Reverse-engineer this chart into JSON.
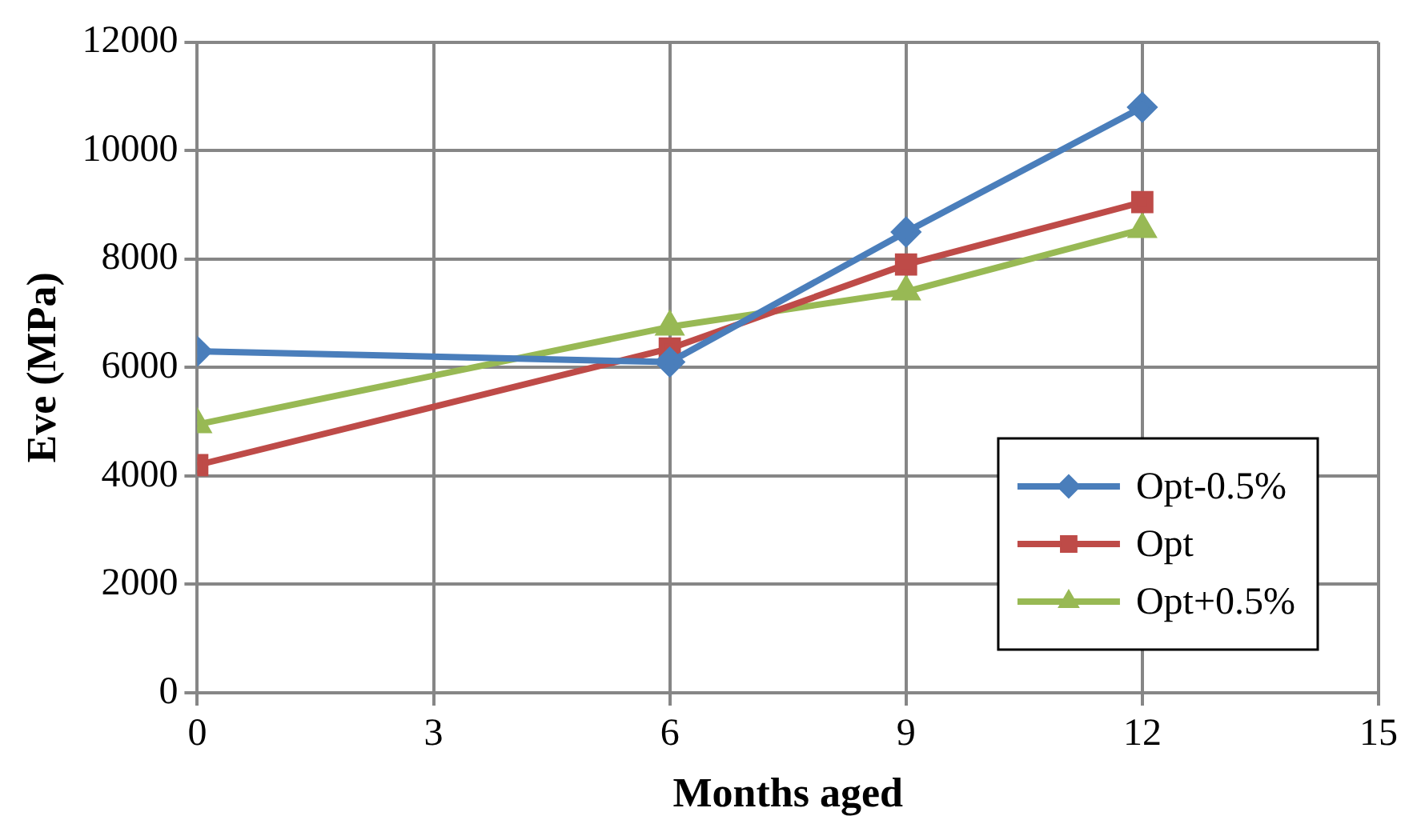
{
  "chart_data": {
    "type": "line",
    "xlabel": "Months aged",
    "ylabel": "Eve (MPa)",
    "x": [
      0,
      6,
      9,
      12
    ],
    "series": [
      {
        "name": "Opt-0.5%",
        "color": "#4a7ebb",
        "values": [
          6300,
          6100,
          8500,
          10800
        ],
        "marker": "diamond"
      },
      {
        "name": "Opt",
        "color": "#be4b48",
        "values": [
          4200,
          6350,
          7900,
          9050
        ],
        "marker": "square"
      },
      {
        "name": "Opt+0.5%",
        "color": "#98b954",
        "values": [
          4950,
          6750,
          7400,
          8550
        ],
        "marker": "triangle"
      }
    ],
    "xlim": [
      0,
      15
    ],
    "xticks": [
      0,
      3,
      6,
      9,
      12,
      15
    ],
    "ylim": [
      0,
      12000
    ],
    "yticks": [
      0,
      2000,
      4000,
      6000,
      8000,
      10000,
      12000
    ],
    "grid": true,
    "legend": "bottom right",
    "line_style": "solid"
  }
}
